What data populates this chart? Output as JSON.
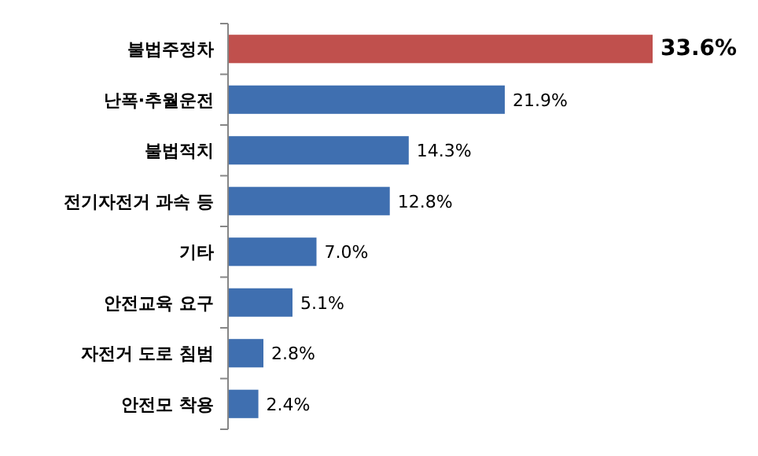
{
  "chart_data": {
    "type": "bar",
    "orientation": "horizontal",
    "categories": [
      "불법주정차",
      "난폭·추월운전",
      "불법적치",
      "전기자전거 과속 등",
      "기타",
      "안전교육 요구",
      "자전거 도로 침범",
      "안전모 착용"
    ],
    "values": [
      33.6,
      21.9,
      14.3,
      12.8,
      7.0,
      5.1,
      2.8,
      2.4
    ],
    "colors": [
      "#c0504d",
      "#3f6fb0",
      "#3f6fb0",
      "#3f6fb0",
      "#3f6fb0",
      "#3f6fb0",
      "#3f6fb0",
      "#3f6fb0"
    ],
    "value_labels": [
      "33.6%",
      "21.9%",
      "14.3%",
      "12.8%",
      "7.0%",
      "5.1%",
      "2.8%",
      "2.4%"
    ]
  }
}
